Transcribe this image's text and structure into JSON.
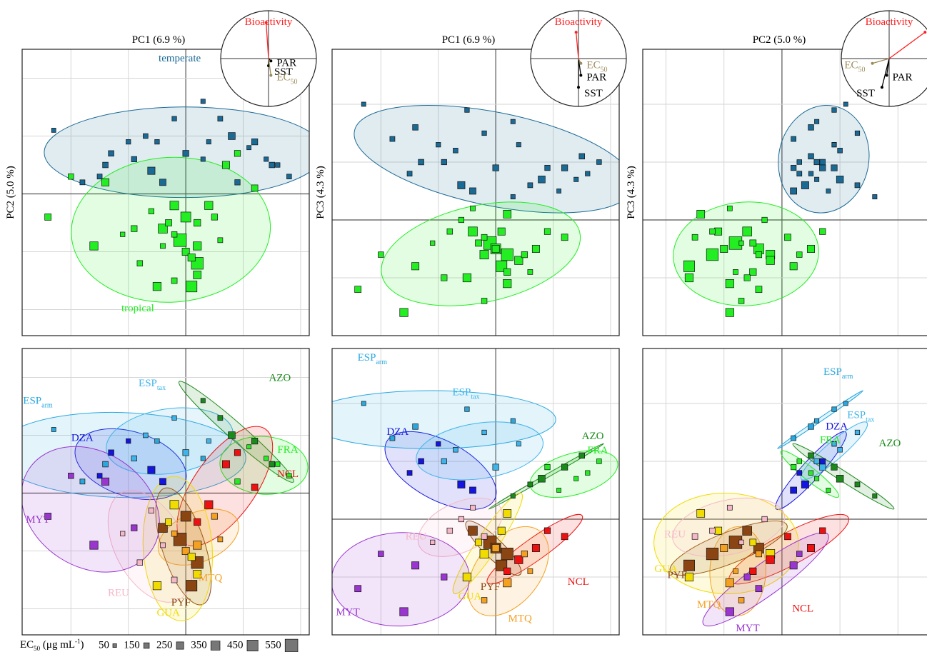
{
  "samples": {
    "region": [
      0,
      0,
      0,
      0,
      0,
      1,
      1,
      1,
      1,
      1,
      2,
      2,
      2,
      2,
      2,
      3,
      3,
      3,
      3,
      3,
      4,
      4,
      4,
      4,
      4,
      5,
      5,
      5,
      5,
      5,
      6,
      6,
      6,
      6,
      6,
      7,
      7,
      7,
      7,
      7,
      8,
      8,
      8,
      8,
      8,
      9,
      9,
      9,
      9,
      9,
      10,
      10,
      10,
      10,
      10
    ],
    "pc1": [
      -1.3,
      -0.6,
      -1.0,
      -0.4,
      -1.5,
      -2.3,
      -1.4,
      -0.5,
      -1.8,
      0.3,
      -0.7,
      0.0,
      -0.9,
      0.4,
      -0.2,
      0.6,
      1.2,
      0.3,
      1.5,
      0.8,
      1.4,
      1.8,
      1.1,
      0.9,
      1.6,
      0.7,
      1.2,
      0.4,
      0.9,
      0.2,
      0.2,
      0.5,
      -0.2,
      0.0,
      0.6,
      -0.1,
      0.1,
      -0.4,
      0.2,
      0.0,
      -0.5,
      0.1,
      -0.3,
      0.2,
      -0.2,
      -0.8,
      -0.4,
      -1.1,
      -0.2,
      -0.6,
      -2.4,
      -1.4,
      -0.9,
      -2.0,
      -1.6
    ],
    "pc2": [
      0.7,
      0.4,
      0.9,
      0.2,
      0.3,
      1.1,
      0.5,
      0.9,
      0.2,
      0.6,
      1.0,
      0.7,
      0.6,
      0.9,
      1.3,
      1.3,
      0.9,
      1.6,
      0.5,
      1.0,
      0.6,
      0.3,
      0.8,
      0.2,
      0.5,
      0.5,
      0.1,
      -0.2,
      0.7,
      -0.5,
      -0.9,
      -0.4,
      -0.7,
      -1.0,
      -0.8,
      -0.8,
      -1.6,
      -0.6,
      -1.2,
      -0.4,
      -1.6,
      -1.1,
      -0.5,
      -1.4,
      -0.2,
      -1.2,
      -0.9,
      -0.7,
      -1.5,
      -0.3,
      -0.4,
      0.2,
      -0.6,
      0.3,
      -0.9
    ],
    "pc3": [
      1.0,
      0.6,
      1.3,
      0.5,
      0.8,
      2.0,
      1.6,
      1.9,
      1.4,
      1.7,
      1.2,
      0.9,
      1.0,
      1.3,
      1.5,
      0.6,
      0.9,
      0.4,
      1.1,
      0.7,
      0.7,
      1.0,
      0.5,
      0.9,
      0.8,
      -0.5,
      -0.3,
      -0.7,
      -0.2,
      -0.9,
      -1.1,
      -0.6,
      -1.4,
      -0.5,
      -0.9,
      -0.4,
      -0.8,
      -0.2,
      -0.6,
      -0.5,
      -1.0,
      -0.2,
      -0.4,
      0.1,
      -0.6,
      -0.2,
      0.2,
      -0.4,
      -0.3,
      0.0,
      -1.2,
      -0.8,
      -1.0,
      -0.6,
      -1.6
    ],
    "ec50": [
      150,
      250,
      100,
      200,
      120,
      80,
      150,
      100,
      120,
      90,
      110,
      180,
      140,
      90,
      100,
      120,
      180,
      90,
      150,
      230,
      90,
      110,
      80,
      140,
      100,
      250,
      200,
      300,
      180,
      220,
      300,
      180,
      150,
      250,
      120,
      550,
      450,
      350,
      500,
      400,
      300,
      250,
      200,
      280,
      330,
      150,
      120,
      100,
      160,
      140,
      200,
      250,
      180,
      150,
      300
    ]
  },
  "groups": {
    "climate": [
      {
        "name": "temperate",
        "color": "#1a6a96"
      },
      {
        "name": "tropical",
        "color": "#22ee22"
      }
    ],
    "region": [
      {
        "name": "DZA",
        "color": "#1515e0",
        "climate": 0
      },
      {
        "name": "ESP",
        "sub": "arm",
        "color": "#29a8e0",
        "climate": 0
      },
      {
        "name": "ESP",
        "sub": "tax",
        "color": "#3fb4ea",
        "climate": 0
      },
      {
        "name": "AZO",
        "color": "#1a8a1a",
        "climate": 0
      },
      {
        "name": "FRA",
        "color": "#22ee22",
        "climate": 0
      },
      {
        "name": "NCL",
        "color": "#ee1111",
        "climate": 1
      },
      {
        "name": "MTQ",
        "color": "#f5a020",
        "climate": 1
      },
      {
        "name": "PYF",
        "color": "#8b4513",
        "climate": 1
      },
      {
        "name": "GUA",
        "color": "#f0dc00",
        "climate": 1
      },
      {
        "name": "REU",
        "color": "#f5b8c8",
        "climate": 1
      },
      {
        "name": "MYT",
        "color": "#9a35d0",
        "climate": 1
      }
    ]
  },
  "loadings": [
    {
      "name": "Bioactivity",
      "color": "#ff2020",
      "pc1": -0.05,
      "pc2": 0.75,
      "pc3": 0.55
    },
    {
      "name": "SST",
      "color": "#000000",
      "pc1": 0.0,
      "pc2": -0.15,
      "pc3": -0.6
    },
    {
      "name": "PAR",
      "color": "#000000",
      "pc1": 0.05,
      "pc2": -0.05,
      "pc3": -0.35
    },
    {
      "name": "EC",
      "sub": "50",
      "color": "#9b8a5a",
      "pc1": 0.05,
      "pc2": -0.35,
      "pc3": -0.1
    }
  ],
  "chart_data": [
    {
      "type": "scatter",
      "x_component": "pc1",
      "y_component": "pc2",
      "xlabel": "PC1 (6.9 %)",
      "ylabel": "PC2 (5.0 %)",
      "color_by": "climate",
      "group_labels": true,
      "loading_circle": true,
      "xlim": [
        -2.85,
        2.15
      ],
      "ylim": [
        -2.45,
        2.5
      ],
      "xticks": [
        -2,
        -1,
        0,
        1,
        2
      ],
      "yticks": [
        -2,
        -1,
        0,
        1,
        2
      ],
      "grid": true
    },
    {
      "type": "scatter",
      "x_component": "pc1",
      "y_component": "pc3",
      "xlabel": "PC1 (6.9 %)",
      "ylabel": "PC3 (4.3 %)",
      "color_by": "climate",
      "group_labels": false,
      "loading_circle": true,
      "xlim": [
        -2.85,
        2.15
      ],
      "ylim": [
        -2.0,
        2.95
      ],
      "xticks": [
        -2,
        -1,
        0,
        1,
        2
      ],
      "yticks": [
        -1,
        0,
        1,
        2
      ],
      "grid": true
    },
    {
      "type": "scatter",
      "x_component": "pc2",
      "y_component": "pc3",
      "xlabel": "PC2 (5.0 %)",
      "ylabel": "PC3 (4.3 %)",
      "color_by": "climate",
      "group_labels": false,
      "loading_circle": true,
      "xlim": [
        -2.4,
        2.55
      ],
      "ylim": [
        -2.0,
        2.95
      ],
      "xticks": [
        -2,
        -1,
        0,
        1,
        2
      ],
      "yticks": [
        -1,
        0,
        1,
        2
      ],
      "grid": true
    },
    {
      "type": "scatter",
      "x_component": "pc1",
      "y_component": "pc2",
      "color_by": "region",
      "group_labels": true,
      "loading_circle": false,
      "xlim": [
        -2.85,
        2.15
      ],
      "ylim": [
        -2.45,
        2.5
      ],
      "xticks": [
        -2,
        -1,
        0,
        1,
        2
      ],
      "yticks": [
        -2,
        -1,
        0,
        1,
        2
      ],
      "grid": true
    },
    {
      "type": "scatter",
      "x_component": "pc1",
      "y_component": "pc3",
      "color_by": "region",
      "group_labels": true,
      "loading_circle": false,
      "xlim": [
        -2.85,
        2.15
      ],
      "ylim": [
        -2.0,
        2.95
      ],
      "xticks": [
        -2,
        -1,
        0,
        1,
        2
      ],
      "yticks": [
        -1,
        0,
        1,
        2
      ],
      "grid": true
    },
    {
      "type": "scatter",
      "x_component": "pc2",
      "y_component": "pc3",
      "color_by": "region",
      "group_labels": true,
      "loading_circle": false,
      "xlim": [
        -2.4,
        2.55
      ],
      "ylim": [
        -2.0,
        2.95
      ],
      "xticks": [
        -2,
        -1,
        0,
        1,
        2
      ],
      "yticks": [
        -1,
        0,
        1,
        2
      ],
      "grid": true
    }
  ],
  "size_legend": {
    "title": [
      "EC",
      "50",
      " (μg mL",
      "-1",
      ")"
    ],
    "values": [
      50,
      150,
      250,
      350,
      450,
      550
    ]
  }
}
